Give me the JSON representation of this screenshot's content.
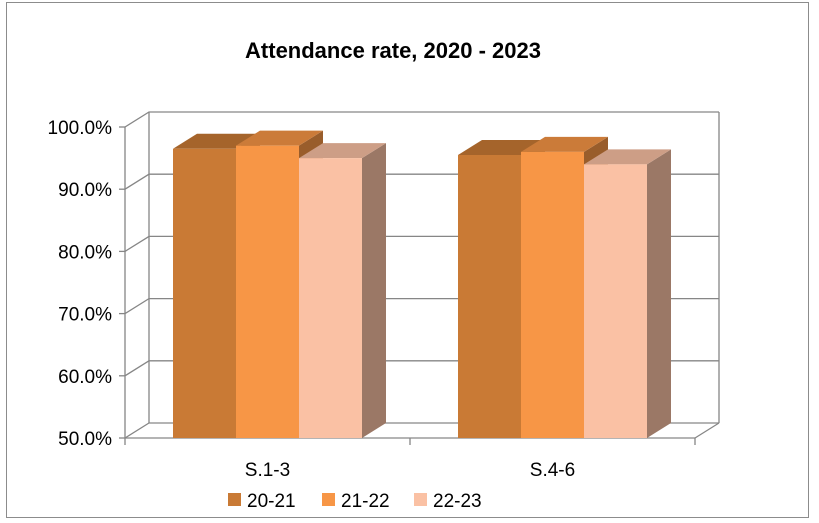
{
  "chart_data": {
    "type": "bar",
    "title": "Attendance rate, 2020 - 2023",
    "categories": [
      "S.1-3",
      "S.4-6"
    ],
    "series": [
      {
        "name": "20-21",
        "values": [
          96.5,
          95.5
        ],
        "color": "#c97a35"
      },
      {
        "name": "21-22",
        "values": [
          97.0,
          96.0
        ],
        "color": "#f79646"
      },
      {
        "name": "22-23",
        "values": [
          95.0,
          94.0
        ],
        "color": "#fac1a4"
      }
    ],
    "ylim": [
      50,
      100
    ],
    "yticks": [
      "50.0%",
      "60.0%",
      "70.0%",
      "80.0%",
      "90.0%",
      "100.0%"
    ],
    "xlabel": "",
    "ylabel": "",
    "grid": true,
    "legend": "bottom",
    "style": "3d-clustered-column"
  }
}
